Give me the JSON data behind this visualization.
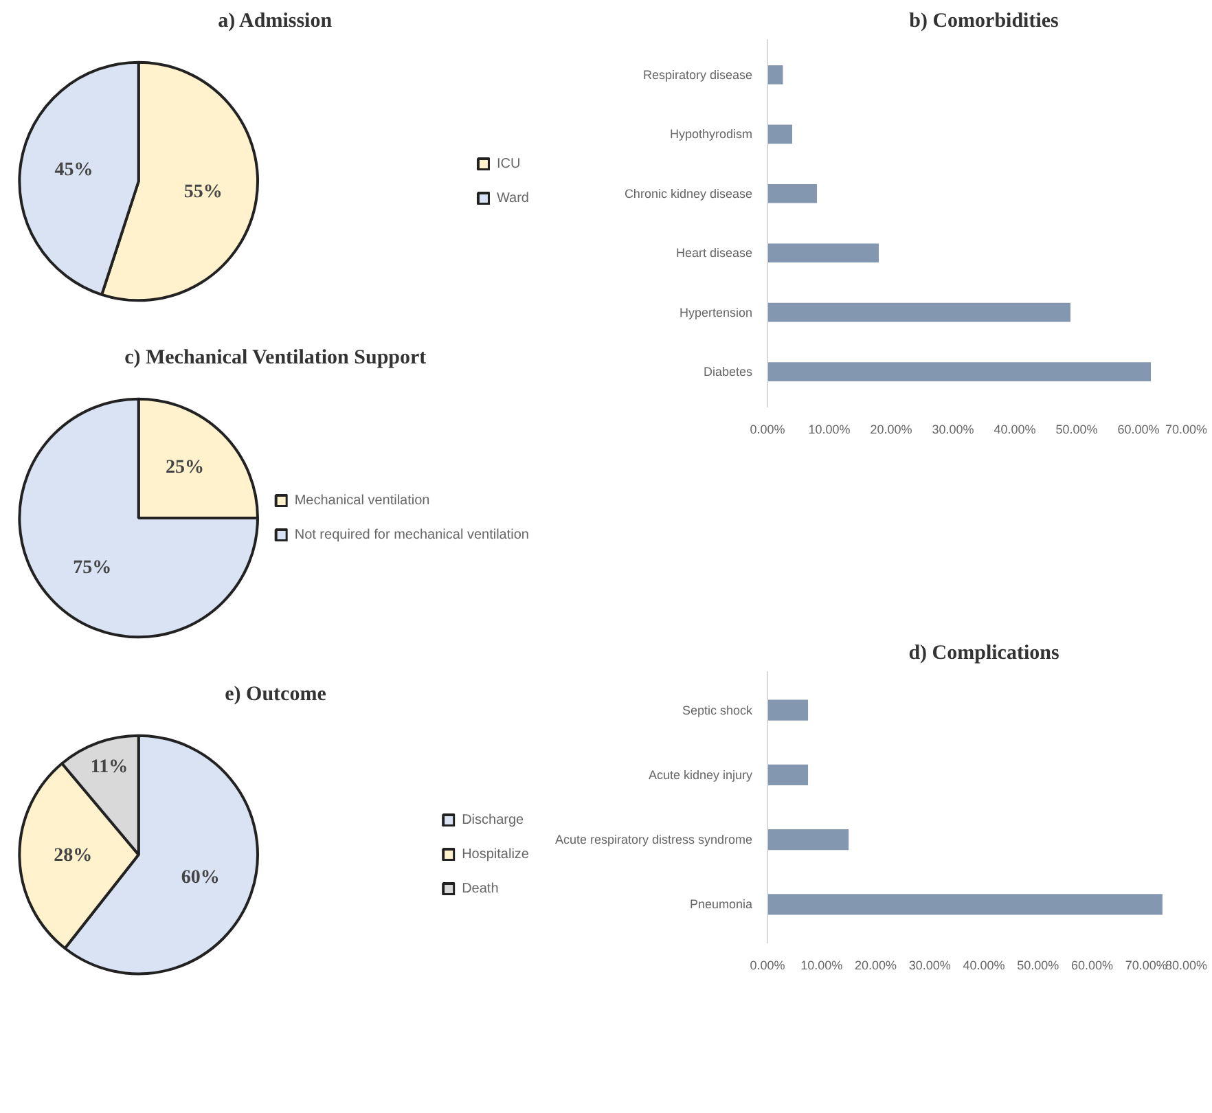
{
  "chart_data": [
    {
      "type": "pie",
      "title": "a) Admission",
      "categories": [
        "ICU",
        "Ward"
      ],
      "values": [
        55,
        45
      ],
      "colors": [
        "#fff2cc",
        "#dae3f3"
      ],
      "value_labels": [
        "55%",
        "45%"
      ],
      "legend": "right"
    },
    {
      "type": "bar",
      "title": "b) Comorbidities",
      "orientation": "horizontal",
      "categories": [
        "Respiratory disease",
        "Hypothyrodism",
        "Chronic kidney disease",
        "Heart disease",
        "Hypertension",
        "Diabetes"
      ],
      "values": [
        2.5,
        4,
        8,
        18,
        49,
        62
      ],
      "color": "#8497b0",
      "xlim": [
        0,
        70
      ],
      "xticks": [
        {
          "value": 0,
          "label": "0.00%"
        },
        {
          "value": 10,
          "label": "10.00%"
        },
        {
          "value": 20,
          "label": "20.00%"
        },
        {
          "value": 30,
          "label": "30.00%"
        },
        {
          "value": 40,
          "label": "40.00%"
        },
        {
          "value": 50,
          "label": "50.00%"
        },
        {
          "value": 60,
          "label": "60.00%"
        },
        {
          "value": 70,
          "label": "70.00%"
        }
      ]
    },
    {
      "type": "pie",
      "title": "c) Mechanical Ventilation Support",
      "categories": [
        "Mechanical ventilation",
        "Not required for mechanical ventilation"
      ],
      "values": [
        25,
        75
      ],
      "colors": [
        "#fff2cc",
        "#dae3f3"
      ],
      "value_labels": [
        "25%",
        "75%"
      ],
      "legend": "right"
    },
    {
      "type": "bar",
      "title": "d) Complications",
      "orientation": "horizontal",
      "categories": [
        "Septic shock",
        "Acute kidney injury",
        "Acute respiratory distress syndrome",
        "Pneumonia"
      ],
      "values": [
        7.5,
        7.5,
        15,
        73
      ],
      "color": "#8497b0",
      "xlim": [
        0,
        80
      ],
      "xticks": [
        {
          "value": 0,
          "label": "0.00%"
        },
        {
          "value": 10,
          "label": "10.00%"
        },
        {
          "value": 20,
          "label": "20.00%"
        },
        {
          "value": 30,
          "label": "30.00%"
        },
        {
          "value": 40,
          "label": "40.00%"
        },
        {
          "value": 50,
          "label": "50.00%"
        },
        {
          "value": 60,
          "label": "60.00%"
        },
        {
          "value": 70,
          "label": "70.00%"
        },
        {
          "value": 80,
          "label": "80.00%"
        }
      ]
    },
    {
      "type": "pie",
      "title": "e) Outcome",
      "categories": [
        "Discharge",
        "Hospitalize",
        "Death"
      ],
      "values": [
        60,
        28,
        11
      ],
      "colors": [
        "#dae3f3",
        "#fff2cc",
        "#d9d9d9"
      ],
      "value_labels": [
        "60%",
        "28%",
        "11%"
      ],
      "legend": "right"
    }
  ]
}
